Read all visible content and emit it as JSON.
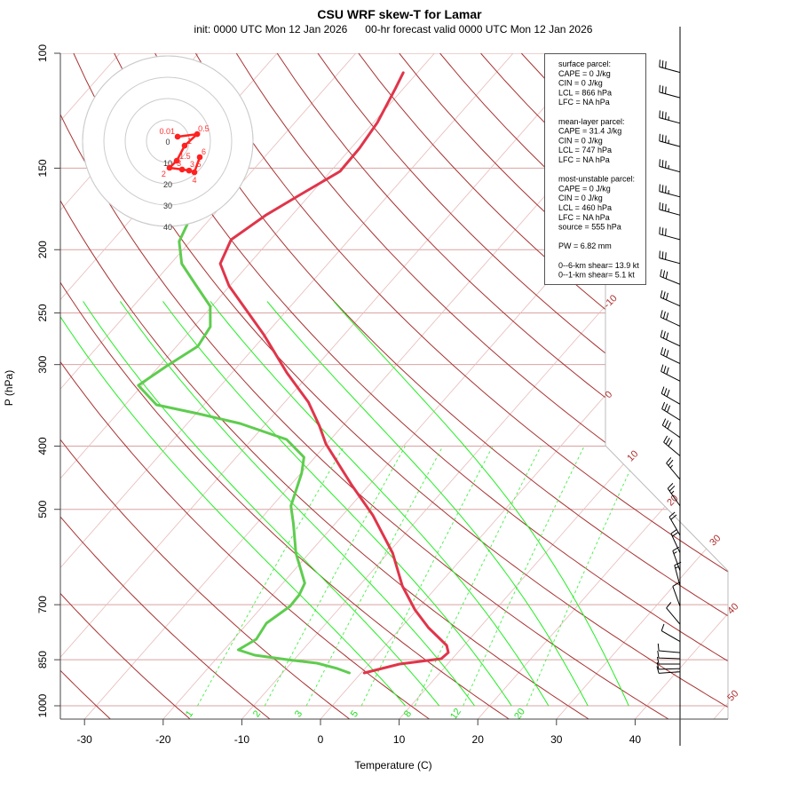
{
  "title": "CSU WRF skew-T for Lamar",
  "subtitle": "init: 0000 UTC Mon 12 Jan 2026      00-hr forecast valid 0000 UTC Mon 12 Jan 2026",
  "colors": {
    "temperature": "#e0354a",
    "dewpoint": "#5fcc4f",
    "dry_adiabat": "#a83232",
    "isotherm": "#e8baba",
    "isobar": "#d9a3a3",
    "moist_adiabat": "#22ee22",
    "mixing_ratio": "#44ee44",
    "hodograph": "#ff2020"
  },
  "chart_data": {
    "type": "skew-t",
    "title": "CSU WRF skew-T for Lamar",
    "xlabel": "Temperature (C)",
    "ylabel": "P (hPa)",
    "x_ticks": [
      "-30",
      "-20",
      "-10",
      "0",
      "10",
      "20",
      "30",
      "40"
    ],
    "x_tick_values": [
      -30,
      -20,
      -10,
      0,
      10,
      20,
      30,
      40
    ],
    "p_ticks": [
      "100",
      "150",
      "200",
      "250",
      "300",
      "400",
      "500",
      "700",
      "850",
      "1000"
    ],
    "p_tick_values": [
      100,
      150,
      200,
      250,
      300,
      400,
      500,
      700,
      850,
      1000
    ],
    "isotherm_labels": [
      "-10",
      "0",
      "10",
      "20",
      "30",
      "40",
      "50"
    ],
    "mixing_ratio_lines": [
      1,
      2,
      3,
      5,
      8,
      12,
      20
    ],
    "mixing_ratio_labels": [
      "1",
      "2",
      "3",
      "5",
      "8",
      "12",
      "20"
    ],
    "moist_adiabats_T1000": [
      9.3,
      13.6,
      18.1,
      22.8,
      27.5,
      32.5,
      37.7
    ],
    "temperature": {
      "p": [
        107.1,
        113.4,
        127.7,
        139.8,
        151.7,
        165.1,
        176.8,
        193.1,
        210.1,
        227.2,
        270.0,
        308.9,
        342.5,
        372.8,
        396.9,
        459.9,
        510.0,
        583.4,
        655.1,
        713.0,
        759.2,
        808.2,
        828.7,
        847.1,
        863.2,
        890.6
      ],
      "T": [
        -61.8,
        -61.0,
        -59.5,
        -58.9,
        -58.8,
        -61.3,
        -63.3,
        -65.0,
        -63.7,
        -60.1,
        -50.2,
        -43.0,
        -37.0,
        -32.9,
        -30.1,
        -22.1,
        -16.2,
        -9.4,
        -4.5,
        -0.2,
        3.5,
        7.8,
        8.8,
        8.6,
        3.9,
        0.4
      ]
    },
    "dewpoint": {
      "p": [
        179.1,
        194.3,
        210.1,
        225.8,
        244.2,
        262.5,
        281.2,
        302.2,
        322.8,
        345.8,
        356.8,
        369.3,
        390.7,
        416.0,
        440.1,
        494.1,
        526.1,
        583.4,
        648.9,
        676.0,
        703.9,
        747.3,
        790.7,
        821.0,
        836.6,
        849.8,
        860.5,
        876.9,
        890.6
      ],
      "T": [
        -72.6,
        -71.4,
        -68.6,
        -64.6,
        -60.2,
        -57.9,
        -57.3,
        -59.1,
        -60.5,
        -56.0,
        -49.7,
        -43.3,
        -35.6,
        -31.4,
        -29.9,
        -27.6,
        -25.3,
        -21.7,
        -17.2,
        -16.6,
        -16.5,
        -17.6,
        -17.1,
        -18.2,
        -15.5,
        -10.9,
        -6.7,
        -3.5,
        -1.5
      ]
    },
    "winds": [
      {
        "p": 107,
        "dir": 285,
        "spd": 30
      },
      {
        "p": 117,
        "dir": 285,
        "spd": 30
      },
      {
        "p": 128,
        "dir": 285,
        "spd": 35
      },
      {
        "p": 139,
        "dir": 285,
        "spd": 35
      },
      {
        "p": 152,
        "dir": 285,
        "spd": 35
      },
      {
        "p": 166,
        "dir": 285,
        "spd": 35
      },
      {
        "p": 177,
        "dir": 285,
        "spd": 35
      },
      {
        "p": 193,
        "dir": 285,
        "spd": 30
      },
      {
        "p": 210,
        "dir": 285,
        "spd": 30
      },
      {
        "p": 226,
        "dir": 292,
        "spd": 30
      },
      {
        "p": 244,
        "dir": 294,
        "spd": 30
      },
      {
        "p": 262,
        "dir": 295,
        "spd": 30
      },
      {
        "p": 281,
        "dir": 295,
        "spd": 30
      },
      {
        "p": 299,
        "dir": 296,
        "spd": 30
      },
      {
        "p": 318,
        "dir": 297,
        "spd": 30
      },
      {
        "p": 345,
        "dir": 300,
        "spd": 30
      },
      {
        "p": 365,
        "dir": 302,
        "spd": 30
      },
      {
        "p": 388,
        "dir": 305,
        "spd": 30
      },
      {
        "p": 414,
        "dir": 310,
        "spd": 30
      },
      {
        "p": 450,
        "dir": 320,
        "spd": 25
      },
      {
        "p": 494,
        "dir": 325,
        "spd": 25
      },
      {
        "p": 548,
        "dir": 330,
        "spd": 20
      },
      {
        "p": 583,
        "dir": 335,
        "spd": 20
      },
      {
        "p": 621,
        "dir": 340,
        "spd": 15
      },
      {
        "p": 655,
        "dir": 345,
        "spd": 15
      },
      {
        "p": 704,
        "dir": 340,
        "spd": 10
      },
      {
        "p": 750,
        "dir": 320,
        "spd": 10
      },
      {
        "p": 797,
        "dir": 300,
        "spd": 10
      },
      {
        "p": 829,
        "dir": 275,
        "spd": 10
      },
      {
        "p": 847,
        "dir": 272,
        "spd": 10
      },
      {
        "p": 863,
        "dir": 270,
        "spd": 10
      },
      {
        "p": 877,
        "dir": 268,
        "spd": 10
      },
      {
        "p": 887,
        "dir": 266,
        "spd": 10
      }
    ]
  },
  "hodograph": {
    "ring_labels": [
      "0",
      "10",
      "20",
      "30",
      "40"
    ],
    "ring_values_kt": [
      10,
      20,
      30,
      40
    ],
    "points": [
      {
        "label": "0.01",
        "u": 4.6,
        "v": 2.1
      },
      {
        "label": "0.5",
        "u": 13.8,
        "v": 3.3
      },
      {
        "label": "1",
        "u": 7.9,
        "v": -2.1
      },
      {
        "label": "1.5",
        "u": 4.2,
        "v": -9.2
      },
      {
        "label": "2",
        "u": 0.8,
        "v": -12.5
      },
      {
        "label": "3",
        "u": 6.7,
        "v": -13.3
      },
      {
        "label": "3.5",
        "u": 10.0,
        "v": -13.8
      },
      {
        "label": "4",
        "u": 12.5,
        "v": -14.6
      },
      {
        "label": "6",
        "u": 15.0,
        "v": -7.5
      }
    ]
  },
  "info": {
    "lines": [
      "surface parcel:",
      "CAPE = 0 J/kg",
      "CIN = 0 J/kg",
      "LCL = 866 hPa",
      "LFC = NA hPa",
      "",
      "mean-layer parcel:",
      "CAPE = 31.4 J/kg",
      "CIN = 0 J/kg",
      "LCL = 747 hPa",
      "LFC = NA hPa",
      "",
      "most-unstable parcel:",
      "CAPE = 0 J/kg",
      "CIN = 0 J/kg",
      "LCL = 460 hPa",
      "LFC = NA hPa",
      "source = 555 hPa",
      "",
      "PW =  6.82 mm",
      "",
      "0--6-km shear= 13.9 kt",
      "0--1-km shear= 5.1 kt"
    ]
  }
}
